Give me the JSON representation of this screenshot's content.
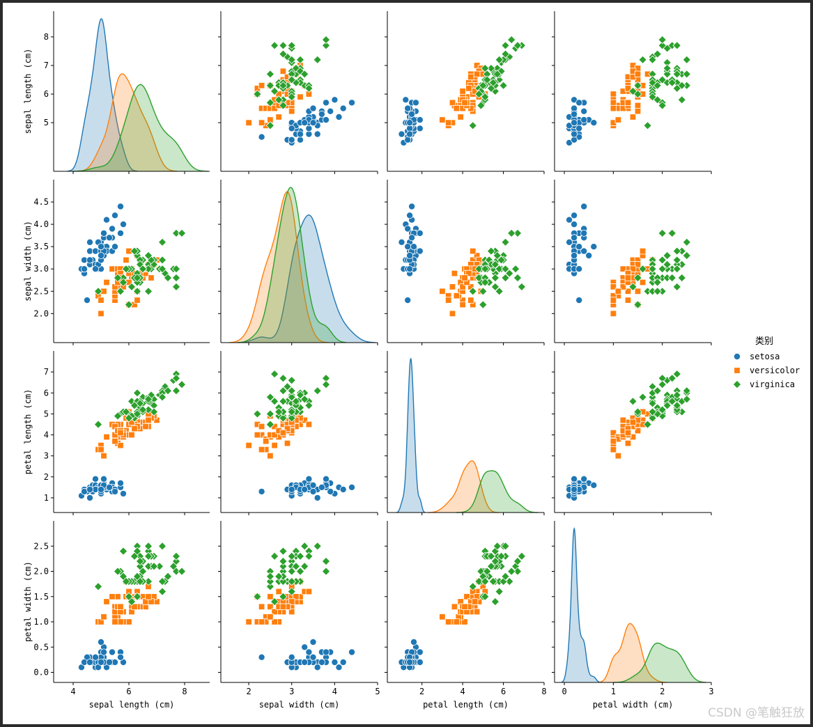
{
  "watermark": "CSDN @笔触狂放",
  "legend": {
    "title": "类别",
    "entries": [
      {
        "label": "setosa",
        "color": "#1f77b4",
        "marker": "circle"
      },
      {
        "label": "versicolor",
        "color": "#ff7f0e",
        "marker": "square"
      },
      {
        "label": "virginica",
        "color": "#2ca02c",
        "marker": "diamond"
      }
    ]
  },
  "chart_data": {
    "type": "scatter",
    "subtype": "pairplot",
    "variables": [
      "sepal length (cm)",
      "sepal width (cm)",
      "petal length (cm)",
      "petal width (cm)"
    ],
    "diagonal": "kde",
    "axes": [
      {
        "label": "sepal length (cm)",
        "range": [
          3.3,
          8.9
        ],
        "ticks": [
          4,
          6,
          8
        ],
        "row_ticks": [
          5,
          6,
          7,
          8
        ]
      },
      {
        "label": "sepal width (cm)",
        "range": [
          1.35,
          5.0
        ],
        "ticks": [
          2,
          3,
          4,
          5
        ],
        "row_ticks": [
          2.0,
          2.5,
          3.0,
          3.5,
          4.0,
          4.5
        ]
      },
      {
        "label": "petal length (cm)",
        "range": [
          0.3,
          8.0
        ],
        "ticks": [
          2,
          4,
          6,
          8
        ],
        "row_ticks": [
          1,
          2,
          3,
          4,
          5,
          6,
          7
        ]
      },
      {
        "label": "petal width (cm)",
        "range": [
          -0.2,
          3.0
        ],
        "ticks": [
          0,
          1,
          2,
          3
        ],
        "row_ticks": [
          0.0,
          0.5,
          1.0,
          1.5,
          2.0,
          2.5
        ]
      }
    ],
    "series": [
      {
        "name": "setosa",
        "color": "#1f77b4",
        "marker": "circle",
        "points": [
          [
            5.1,
            3.5,
            1.4,
            0.2
          ],
          [
            4.9,
            3.0,
            1.4,
            0.2
          ],
          [
            4.7,
            3.2,
            1.3,
            0.2
          ],
          [
            4.6,
            3.1,
            1.5,
            0.2
          ],
          [
            5.0,
            3.6,
            1.4,
            0.2
          ],
          [
            5.4,
            3.9,
            1.7,
            0.4
          ],
          [
            4.6,
            3.4,
            1.4,
            0.3
          ],
          [
            5.0,
            3.4,
            1.5,
            0.2
          ],
          [
            4.4,
            2.9,
            1.4,
            0.2
          ],
          [
            4.9,
            3.1,
            1.5,
            0.1
          ],
          [
            5.4,
            3.7,
            1.5,
            0.2
          ],
          [
            4.8,
            3.4,
            1.6,
            0.2
          ],
          [
            4.8,
            3.0,
            1.4,
            0.1
          ],
          [
            4.3,
            3.0,
            1.1,
            0.1
          ],
          [
            5.8,
            4.0,
            1.2,
            0.2
          ],
          [
            5.7,
            4.4,
            1.5,
            0.4
          ],
          [
            5.4,
            3.9,
            1.3,
            0.4
          ],
          [
            5.1,
            3.5,
            1.4,
            0.3
          ],
          [
            5.7,
            3.8,
            1.7,
            0.3
          ],
          [
            5.1,
            3.8,
            1.5,
            0.3
          ],
          [
            5.4,
            3.4,
            1.7,
            0.2
          ],
          [
            5.1,
            3.7,
            1.5,
            0.4
          ],
          [
            4.6,
            3.6,
            1.0,
            0.2
          ],
          [
            5.1,
            3.3,
            1.7,
            0.5
          ],
          [
            4.8,
            3.4,
            1.9,
            0.2
          ],
          [
            5.0,
            3.0,
            1.6,
            0.2
          ],
          [
            5.0,
            3.4,
            1.6,
            0.4
          ],
          [
            5.2,
            3.5,
            1.5,
            0.2
          ],
          [
            5.2,
            3.4,
            1.4,
            0.2
          ],
          [
            4.7,
            3.2,
            1.6,
            0.2
          ],
          [
            4.8,
            3.1,
            1.6,
            0.2
          ],
          [
            5.4,
            3.4,
            1.5,
            0.4
          ],
          [
            5.2,
            4.1,
            1.5,
            0.1
          ],
          [
            5.5,
            4.2,
            1.4,
            0.2
          ],
          [
            4.9,
            3.1,
            1.5,
            0.2
          ],
          [
            5.0,
            3.2,
            1.2,
            0.2
          ],
          [
            5.5,
            3.5,
            1.3,
            0.2
          ],
          [
            4.9,
            3.6,
            1.4,
            0.1
          ],
          [
            4.4,
            3.0,
            1.3,
            0.2
          ],
          [
            5.1,
            3.4,
            1.5,
            0.2
          ],
          [
            5.0,
            3.5,
            1.3,
            0.3
          ],
          [
            4.5,
            2.3,
            1.3,
            0.3
          ],
          [
            4.4,
            3.2,
            1.3,
            0.2
          ],
          [
            5.0,
            3.5,
            1.6,
            0.6
          ],
          [
            5.1,
            3.8,
            1.9,
            0.4
          ],
          [
            4.8,
            3.0,
            1.4,
            0.3
          ],
          [
            5.1,
            3.8,
            1.6,
            0.2
          ],
          [
            4.6,
            3.2,
            1.4,
            0.2
          ],
          [
            5.3,
            3.7,
            1.5,
            0.2
          ],
          [
            5.0,
            3.3,
            1.4,
            0.2
          ]
        ]
      },
      {
        "name": "versicolor",
        "color": "#ff7f0e",
        "marker": "square",
        "points": [
          [
            7.0,
            3.2,
            4.7,
            1.4
          ],
          [
            6.4,
            3.2,
            4.5,
            1.5
          ],
          [
            6.9,
            3.1,
            4.9,
            1.5
          ],
          [
            5.5,
            2.3,
            4.0,
            1.3
          ],
          [
            6.5,
            2.8,
            4.6,
            1.5
          ],
          [
            5.7,
            2.8,
            4.5,
            1.3
          ],
          [
            6.3,
            3.3,
            4.7,
            1.6
          ],
          [
            4.9,
            2.4,
            3.3,
            1.0
          ],
          [
            6.6,
            2.9,
            4.6,
            1.3
          ],
          [
            5.2,
            2.7,
            3.9,
            1.4
          ],
          [
            5.0,
            2.0,
            3.5,
            1.0
          ],
          [
            5.9,
            3.0,
            4.2,
            1.5
          ],
          [
            6.0,
            2.2,
            4.0,
            1.0
          ],
          [
            6.1,
            2.9,
            4.7,
            1.4
          ],
          [
            5.6,
            2.9,
            3.6,
            1.3
          ],
          [
            6.7,
            3.1,
            4.4,
            1.4
          ],
          [
            5.6,
            3.0,
            4.5,
            1.5
          ],
          [
            5.8,
            2.7,
            4.1,
            1.0
          ],
          [
            6.2,
            2.2,
            4.5,
            1.5
          ],
          [
            5.6,
            2.5,
            3.9,
            1.1
          ],
          [
            5.9,
            3.2,
            4.8,
            1.8
          ],
          [
            6.1,
            2.8,
            4.0,
            1.3
          ],
          [
            6.3,
            2.5,
            4.9,
            1.5
          ],
          [
            6.1,
            2.8,
            4.7,
            1.2
          ],
          [
            6.4,
            2.9,
            4.3,
            1.3
          ],
          [
            6.6,
            3.0,
            4.4,
            1.4
          ],
          [
            6.8,
            2.8,
            4.8,
            1.4
          ],
          [
            6.7,
            3.0,
            5.0,
            1.7
          ],
          [
            6.0,
            2.9,
            4.5,
            1.5
          ],
          [
            5.7,
            2.6,
            3.5,
            1.0
          ],
          [
            5.5,
            2.4,
            3.8,
            1.1
          ],
          [
            5.5,
            2.4,
            3.7,
            1.0
          ],
          [
            5.8,
            2.7,
            3.9,
            1.2
          ],
          [
            6.0,
            2.7,
            5.1,
            1.6
          ],
          [
            5.4,
            3.0,
            4.5,
            1.5
          ],
          [
            6.0,
            3.4,
            4.5,
            1.6
          ],
          [
            6.7,
            3.1,
            4.7,
            1.5
          ],
          [
            6.3,
            2.3,
            4.4,
            1.3
          ],
          [
            5.6,
            3.0,
            4.1,
            1.3
          ],
          [
            5.5,
            2.5,
            4.0,
            1.3
          ],
          [
            5.5,
            2.6,
            4.4,
            1.2
          ],
          [
            6.1,
            3.0,
            4.6,
            1.4
          ],
          [
            5.8,
            2.6,
            4.0,
            1.2
          ],
          [
            5.0,
            2.3,
            3.3,
            1.0
          ],
          [
            5.6,
            2.7,
            4.2,
            1.3
          ],
          [
            5.7,
            3.0,
            4.2,
            1.2
          ],
          [
            5.7,
            2.9,
            4.2,
            1.3
          ],
          [
            6.2,
            2.9,
            4.3,
            1.3
          ],
          [
            5.1,
            2.5,
            3.0,
            1.1
          ],
          [
            5.7,
            2.8,
            4.1,
            1.3
          ]
        ]
      },
      {
        "name": "virginica",
        "color": "#2ca02c",
        "marker": "diamond",
        "points": [
          [
            6.3,
            3.3,
            6.0,
            2.5
          ],
          [
            5.8,
            2.7,
            5.1,
            1.9
          ],
          [
            7.1,
            3.0,
            5.9,
            2.1
          ],
          [
            6.3,
            2.9,
            5.6,
            1.8
          ],
          [
            6.5,
            3.0,
            5.8,
            2.2
          ],
          [
            7.6,
            3.0,
            6.6,
            2.1
          ],
          [
            4.9,
            2.5,
            4.5,
            1.7
          ],
          [
            7.3,
            2.9,
            6.3,
            1.8
          ],
          [
            6.7,
            2.5,
            5.8,
            1.8
          ],
          [
            7.2,
            3.6,
            6.1,
            2.5
          ],
          [
            6.5,
            3.2,
            5.1,
            2.0
          ],
          [
            6.4,
            2.7,
            5.3,
            1.9
          ],
          [
            6.8,
            3.0,
            5.5,
            2.1
          ],
          [
            5.7,
            2.5,
            5.0,
            2.0
          ],
          [
            5.8,
            2.8,
            5.1,
            2.4
          ],
          [
            6.4,
            3.2,
            5.3,
            2.3
          ],
          [
            6.5,
            3.0,
            5.5,
            1.8
          ],
          [
            7.7,
            3.8,
            6.7,
            2.2
          ],
          [
            7.7,
            2.6,
            6.9,
            2.3
          ],
          [
            6.0,
            2.2,
            5.0,
            1.5
          ],
          [
            6.9,
            3.2,
            5.7,
            2.3
          ],
          [
            5.6,
            2.8,
            4.9,
            2.0
          ],
          [
            7.7,
            2.8,
            6.7,
            2.0
          ],
          [
            6.3,
            2.7,
            4.9,
            1.8
          ],
          [
            6.7,
            3.3,
            5.7,
            2.1
          ],
          [
            7.2,
            3.2,
            6.0,
            1.8
          ],
          [
            6.2,
            2.8,
            4.8,
            1.8
          ],
          [
            6.1,
            3.0,
            4.9,
            1.8
          ],
          [
            6.4,
            2.8,
            5.6,
            2.1
          ],
          [
            7.2,
            3.0,
            5.8,
            1.6
          ],
          [
            7.4,
            2.8,
            6.1,
            1.9
          ],
          [
            7.9,
            3.8,
            6.4,
            2.0
          ],
          [
            6.4,
            2.8,
            5.6,
            2.2
          ],
          [
            6.3,
            2.8,
            5.1,
            1.5
          ],
          [
            6.1,
            2.6,
            5.6,
            1.4
          ],
          [
            7.7,
            3.0,
            6.1,
            2.3
          ],
          [
            6.3,
            3.4,
            5.6,
            2.4
          ],
          [
            6.4,
            3.1,
            5.5,
            1.8
          ],
          [
            6.0,
            3.0,
            4.8,
            1.8
          ],
          [
            6.9,
            3.1,
            5.4,
            2.1
          ],
          [
            6.7,
            3.1,
            5.6,
            2.4
          ],
          [
            6.9,
            3.1,
            5.1,
            2.3
          ],
          [
            5.8,
            2.7,
            5.1,
            1.9
          ],
          [
            6.8,
            3.2,
            5.9,
            2.3
          ],
          [
            6.7,
            3.3,
            5.7,
            2.5
          ],
          [
            6.7,
            3.0,
            5.2,
            2.3
          ],
          [
            6.3,
            2.5,
            5.0,
            1.9
          ],
          [
            6.5,
            3.0,
            5.2,
            2.0
          ],
          [
            6.2,
            3.4,
            5.4,
            2.3
          ],
          [
            5.9,
            3.0,
            5.1,
            1.8
          ]
        ]
      }
    ]
  }
}
